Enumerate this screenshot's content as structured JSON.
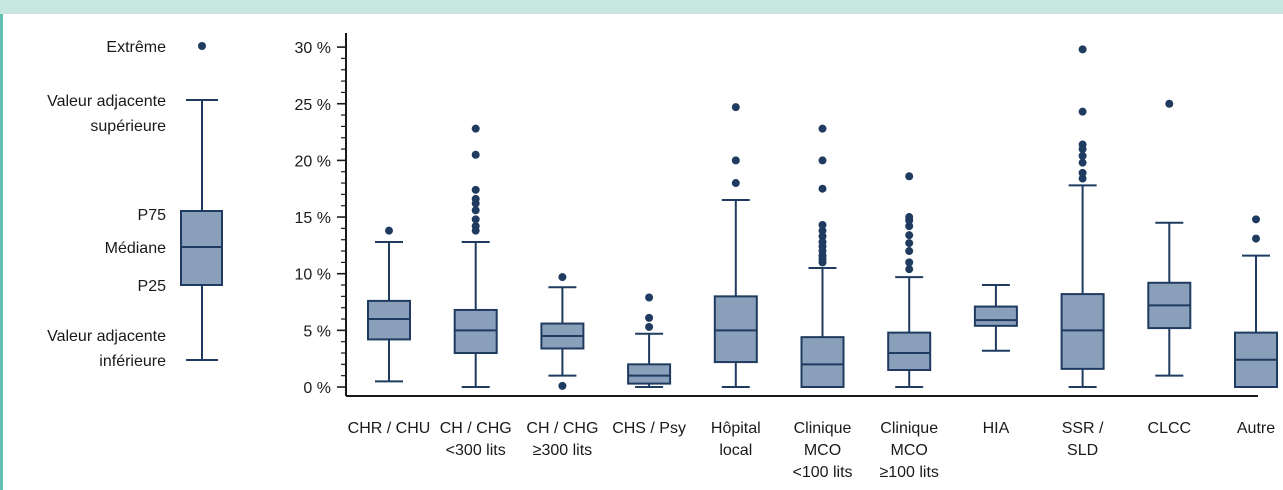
{
  "colors": {
    "box_fill": "#8aa0ba",
    "box_stroke": "#1f3b5f",
    "outlier": "#1f3b5f",
    "axis": "#1a1a1a",
    "band": "#c7e6e0",
    "rule": "#62c0b1"
  },
  "legend": {
    "extreme": "Extrême",
    "upper_adjacent": [
      "Valeur adjacente",
      "supérieure"
    ],
    "p75": "P75",
    "median": "Médiane",
    "p25": "P25",
    "lower_adjacent": [
      "Valeur adjacente",
      "inférieure"
    ]
  },
  "chart_data": {
    "type": "box",
    "title": "",
    "xlabel": "",
    "ylabel": "",
    "ylim": [
      0,
      31
    ],
    "y_ticks": [
      0,
      5,
      10,
      15,
      20,
      25,
      30
    ],
    "y_tick_labels": [
      "0 %",
      "5 %",
      "10 %",
      "15 %",
      "20 %",
      "25 %",
      "30 %"
    ],
    "grid": false,
    "categories": [
      {
        "label": [
          "CHR / CHU"
        ],
        "whisker_low": 0.5,
        "q1": 4.2,
        "median": 6.0,
        "q3": 7.6,
        "whisker_high": 12.8,
        "outliers": [
          13.8
        ]
      },
      {
        "label": [
          "CH / CHG",
          "<300 lits"
        ],
        "whisker_low": 0.0,
        "q1": 3.0,
        "median": 5.0,
        "q3": 6.8,
        "whisker_high": 12.8,
        "outliers": [
          13.8,
          14.2,
          14.8,
          15.6,
          16.2,
          16.6,
          17.4,
          20.5,
          22.8
        ]
      },
      {
        "label": [
          "CH / CHG",
          "≥300 lits"
        ],
        "whisker_low": 1.0,
        "q1": 3.4,
        "median": 4.5,
        "q3": 5.6,
        "whisker_high": 8.8,
        "outliers": [
          0.1,
          9.7
        ]
      },
      {
        "label": [
          "CHS / Psy"
        ],
        "whisker_low": 0.0,
        "q1": 0.3,
        "median": 1.0,
        "q3": 2.0,
        "whisker_high": 4.7,
        "outliers": [
          5.3,
          6.1,
          7.9
        ]
      },
      {
        "label": [
          "Hôpital",
          "local"
        ],
        "whisker_low": 0.0,
        "q1": 2.2,
        "median": 5.0,
        "q3": 8.0,
        "whisker_high": 16.5,
        "outliers": [
          18.0,
          20.0,
          24.7
        ]
      },
      {
        "label": [
          "Clinique",
          "MCO",
          "<100 lits"
        ],
        "whisker_low": 0.0,
        "q1": 0.0,
        "median": 2.0,
        "q3": 4.4,
        "whisker_high": 10.5,
        "outliers": [
          11.0,
          11.3,
          11.6,
          12.0,
          12.4,
          12.8,
          13.3,
          13.8,
          14.3,
          17.5,
          20.0,
          22.8
        ]
      },
      {
        "label": [
          "Clinique",
          "MCO",
          "≥100 lits"
        ],
        "whisker_low": 0.0,
        "q1": 1.5,
        "median": 3.0,
        "q3": 4.8,
        "whisker_high": 9.7,
        "outliers": [
          10.4,
          11.0,
          12.0,
          12.7,
          13.4,
          14.2,
          14.7,
          15.0,
          18.6
        ]
      },
      {
        "label": [
          "HIA"
        ],
        "whisker_low": 3.2,
        "q1": 5.4,
        "median": 5.9,
        "q3": 7.1,
        "whisker_high": 9.0,
        "outliers": []
      },
      {
        "label": [
          "SSR /",
          "SLD"
        ],
        "whisker_low": 0.0,
        "q1": 1.6,
        "median": 5.0,
        "q3": 8.2,
        "whisker_high": 17.8,
        "outliers": [
          18.4,
          18.9,
          19.8,
          20.4,
          21.0,
          21.4,
          24.3,
          29.8
        ]
      },
      {
        "label": [
          "CLCC"
        ],
        "whisker_low": 1.0,
        "q1": 5.2,
        "median": 7.2,
        "q3": 9.2,
        "whisker_high": 14.5,
        "outliers": [
          25.0
        ]
      },
      {
        "label": [
          "Autre"
        ],
        "whisker_low": 0.0,
        "q1": 0.0,
        "median": 2.4,
        "q3": 4.8,
        "whisker_high": 11.6,
        "outliers": [
          13.1,
          14.8
        ]
      }
    ]
  }
}
